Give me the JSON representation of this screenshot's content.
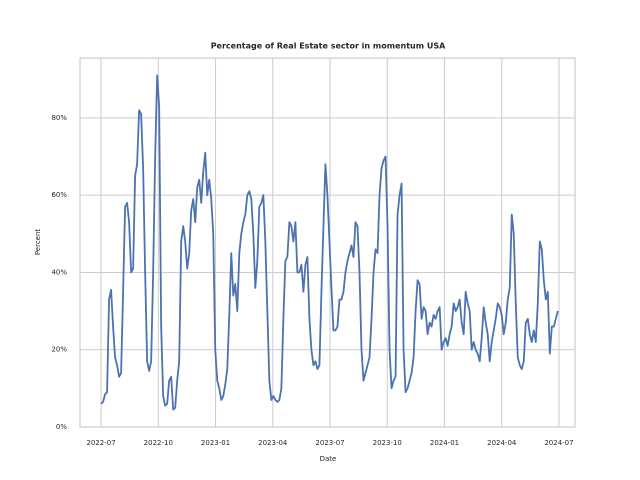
{
  "chart_data": {
    "type": "line",
    "title": "Percentage of Real Estate sector in momentum USA",
    "x_label": "Date",
    "y_label": "Percent",
    "color": "#4c72b0",
    "grid": true,
    "xlim": [
      2022.408,
      2024.57
    ],
    "xticks": [
      {
        "value": 2022.5,
        "label": "2022-07"
      },
      {
        "value": 2022.75,
        "label": "2022-10"
      },
      {
        "value": 2023.0,
        "label": "2023-01"
      },
      {
        "value": 2023.25,
        "label": "2023-04"
      },
      {
        "value": 2023.5,
        "label": "2023-07"
      },
      {
        "value": 2023.75,
        "label": "2023-10"
      },
      {
        "value": 2024.0,
        "label": "2024-01"
      },
      {
        "value": 2024.25,
        "label": "2024-04"
      },
      {
        "value": 2024.5,
        "label": "2024-07"
      }
    ],
    "ylim": [
      0,
      95.5
    ],
    "yticks": [
      {
        "value": 0,
        "label": "0%"
      },
      {
        "value": 20,
        "label": "20%"
      },
      {
        "value": 40,
        "label": "40%"
      },
      {
        "value": 60,
        "label": "60%"
      },
      {
        "value": 80,
        "label": "80%"
      }
    ],
    "x": [
      2022.5,
      2022.50875,
      2022.5175,
      2022.52625,
      2022.535,
      2022.54375,
      2022.5525,
      2022.56125,
      2022.57,
      2022.57875,
      2022.5875,
      2022.59625,
      2022.605,
      2022.61375,
      2022.6225,
      2022.63125,
      2022.64,
      2022.64875,
      2022.6575,
      2022.66625,
      2022.675,
      2022.68375,
      2022.6925,
      2022.70125,
      2022.71,
      2022.71875,
      2022.7275,
      2022.73625,
      2022.745,
      2022.75375,
      2022.7625,
      2022.77125,
      2022.78,
      2022.78875,
      2022.7975,
      2022.80625,
      2022.815,
      2022.82375,
      2022.8325,
      2022.84125,
      2022.85,
      2022.85875,
      2022.8675,
      2022.87625,
      2022.885,
      2022.89375,
      2022.9025,
      2022.91125,
      2022.92,
      2022.92875,
      2022.9375,
      2022.94625,
      2022.955,
      2022.96375,
      2022.9725,
      2022.98125,
      2022.99,
      2022.99875,
      2023.0075,
      2023.01625,
      2023.025,
      2023.03375,
      2023.0425,
      2023.05125,
      2023.06,
      2023.06875,
      2023.0775,
      2023.08625,
      2023.095,
      2023.10375,
      2023.1125,
      2023.12125,
      2023.13,
      2023.13875,
      2023.1475,
      2023.15625,
      2023.165,
      2023.17375,
      2023.1825,
      2023.19125,
      2023.2,
      2023.20875,
      2023.2175,
      2023.22625,
      2023.235,
      2023.24375,
      2023.2525,
      2023.26125,
      2023.27,
      2023.27875,
      2023.2875,
      2023.29625,
      2023.305,
      2023.31375,
      2023.3225,
      2023.33125,
      2023.34,
      2023.34875,
      2023.3575,
      2023.36625,
      2023.375,
      2023.38375,
      2023.3925,
      2023.40125,
      2023.41,
      2023.41875,
      2023.4275,
      2023.43625,
      2023.445,
      2023.45375,
      2023.4625,
      2023.47125,
      2023.48,
      2023.48875,
      2023.4975,
      2023.50625,
      2023.515,
      2023.52375,
      2023.5325,
      2023.54125,
      2023.55,
      2023.55875,
      2023.5675,
      2023.57625,
      2023.585,
      2023.59375,
      2023.6025,
      2023.61125,
      2023.62,
      2023.62875,
      2023.6375,
      2023.64625,
      2023.655,
      2023.66375,
      2023.6725,
      2023.68125,
      2023.69,
      2023.69875,
      2023.7075,
      2023.71625,
      2023.725,
      2023.73375,
      2023.7425,
      2023.75125,
      2023.76,
      2023.76875,
      2023.7775,
      2023.78625,
      2023.795,
      2023.80375,
      2023.8125,
      2023.82125,
      2023.83,
      2023.83875,
      2023.8475,
      2023.85625,
      2023.865,
      2023.87375,
      2023.8825,
      2023.89125,
      2023.9,
      2023.90875,
      2023.9175,
      2023.92625,
      2023.935,
      2023.94375,
      2023.9525,
      2023.96125,
      2023.97,
      2023.97875,
      2023.9875,
      2023.99625,
      2024.005,
      2024.01375,
      2024.0225,
      2024.03125,
      2024.04,
      2024.04875,
      2024.0575,
      2024.06625,
      2024.075,
      2024.08375,
      2024.0925,
      2024.10125,
      2024.11,
      2024.11875,
      2024.1275,
      2024.13625,
      2024.145,
      2024.15375,
      2024.1625,
      2024.17125,
      2024.18,
      2024.18875,
      2024.1975,
      2024.20625,
      2024.215,
      2024.22375,
      2024.2325,
      2024.24125,
      2024.25,
      2024.25875,
      2024.2675,
      2024.27625,
      2024.285,
      2024.29375,
      2024.3025,
      2024.31125,
      2024.32,
      2024.32875,
      2024.3375,
      2024.34625,
      2024.355,
      2024.36375,
      2024.3725,
      2024.38125,
      2024.39,
      2024.39875,
      2024.4075,
      2024.41625,
      2024.425,
      2024.43375,
      2024.4425,
      2024.45125,
      2024.46,
      2024.46875,
      2024.4775,
      2024.48625,
      2024.495
    ],
    "values": [
      6,
      6.5,
      8.5,
      9,
      33,
      35.5,
      26,
      18,
      16,
      13,
      14,
      35,
      57,
      58,
      53,
      40,
      41,
      65,
      68,
      82,
      81,
      67,
      40,
      17,
      14.5,
      17,
      40,
      70,
      91,
      83,
      26,
      8,
      5.5,
      6,
      12,
      13,
      4.5,
      5,
      12,
      17,
      48,
      52,
      48,
      41,
      45,
      56,
      59,
      53,
      62,
      64,
      58,
      66,
      71,
      60,
      64,
      59,
      50,
      20,
      12,
      10,
      7,
      8,
      11,
      15,
      29,
      45,
      34,
      37,
      30,
      45,
      50,
      53,
      55,
      60,
      61,
      59,
      50,
      36,
      43,
      57,
      58,
      60,
      48,
      30,
      12,
      7,
      8,
      7,
      6.5,
      7,
      10,
      28,
      43,
      44,
      53,
      52,
      48,
      53,
      40,
      40,
      42,
      35,
      42,
      44,
      28,
      20,
      16,
      17,
      15,
      16,
      35,
      52,
      68,
      60,
      48,
      36,
      25,
      25,
      26,
      33,
      33,
      35,
      40,
      43,
      45,
      47,
      44,
      53,
      52,
      40,
      20,
      12,
      14,
      16,
      18,
      28,
      40,
      46,
      45,
      60,
      67,
      69,
      70,
      52,
      20,
      10,
      12,
      13,
      55,
      60,
      63,
      20,
      9,
      10,
      12,
      14,
      18,
      30,
      38,
      37,
      28,
      31,
      30,
      24,
      27,
      26,
      29,
      28,
      30,
      31,
      20,
      22,
      23,
      21,
      24,
      26,
      32,
      30,
      31,
      33,
      27,
      24,
      35,
      32,
      30,
      20,
      22,
      20,
      19,
      17,
      23,
      31,
      27,
      24,
      17,
      22,
      25,
      28,
      32,
      31,
      29,
      24,
      27,
      33,
      36,
      55,
      50,
      32,
      18,
      16,
      15,
      17,
      27,
      28,
      24,
      22,
      25,
      22,
      32,
      48,
      46,
      38,
      33,
      35,
      19,
      26,
      26,
      28,
      30
    ]
  }
}
